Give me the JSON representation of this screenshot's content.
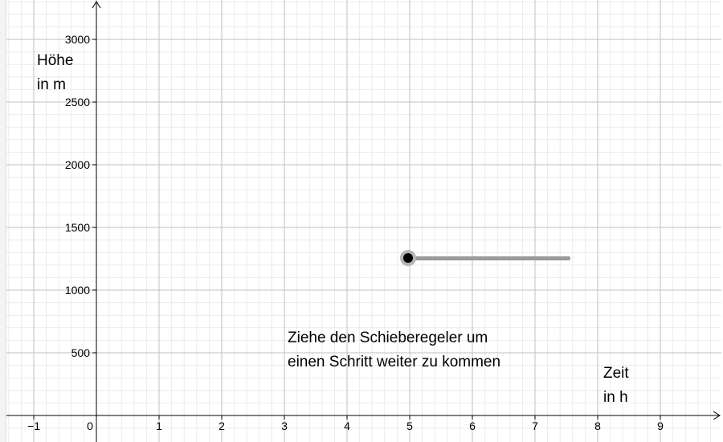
{
  "axes": {
    "y_label_lines": [
      "Höhe",
      "in m"
    ],
    "x_label_lines": [
      "Zeit",
      "in h"
    ],
    "x_ticks": [
      "−1",
      "0",
      "1",
      "2",
      "3",
      "4",
      "5",
      "6",
      "7",
      "8",
      "9"
    ],
    "y_ticks": [
      "500",
      "1000",
      "1500",
      "2000",
      "2500",
      "3000"
    ],
    "x_range": [
      -1.5,
      9.9
    ],
    "y_range": [
      -200,
      3300
    ],
    "grid": true
  },
  "instruction_lines": [
    "Ziehe den Schieberegeler um",
    "einen Schritt weiter zu kommen"
  ],
  "slider": {
    "value_fraction": 0.0
  },
  "colors": {
    "major_grid": "#c0c0c0",
    "minor_grid": "#ebebeb",
    "axis": "#000000",
    "slider_track": "#9a9a9a",
    "slider_handle": "#000000"
  }
}
